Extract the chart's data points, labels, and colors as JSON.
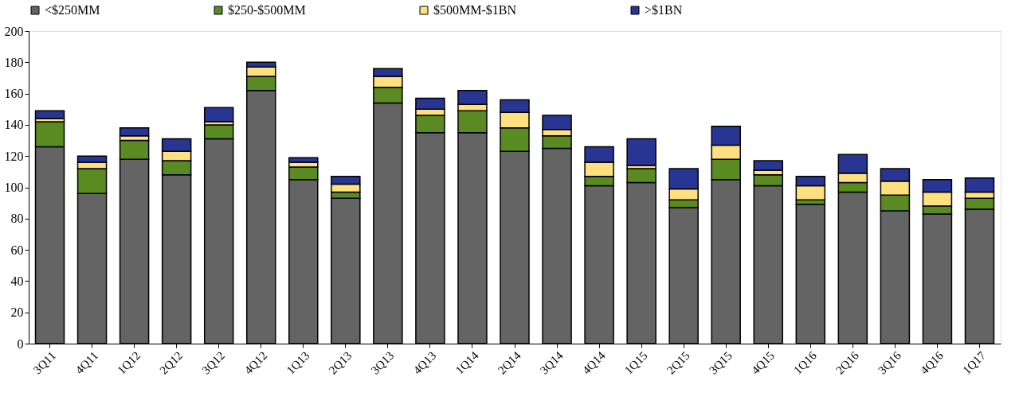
{
  "chart_data": {
    "type": "bar",
    "stacked": true,
    "categories": [
      "3Q11",
      "4Q11",
      "1Q12",
      "2Q12",
      "3Q12",
      "4Q12",
      "1Q13",
      "2Q13",
      "3Q13",
      "4Q13",
      "1Q14",
      "2Q14",
      "3Q14",
      "4Q14",
      "1Q15",
      "2Q15",
      "3Q15",
      "4Q15",
      "1Q16",
      "2Q16",
      "3Q16",
      "4Q16",
      "1Q17"
    ],
    "series": [
      {
        "name": "<$250MM",
        "color": "#646464",
        "values": [
          126,
          96,
          118,
          108,
          131,
          162,
          105,
          93,
          154,
          135,
          135,
          123,
          125,
          101,
          103,
          87,
          105,
          101,
          89,
          97,
          85,
          83,
          86
        ]
      },
      {
        "name": "$250-$500MM",
        "color": "#5a8a22",
        "values": [
          16,
          16,
          12,
          9,
          9,
          9,
          8,
          4,
          10,
          11,
          14,
          15,
          8,
          6,
          9,
          5,
          13,
          7,
          3,
          6,
          10,
          5,
          7
        ]
      },
      {
        "name": "$500MM-$1BN",
        "color": "#ffe080",
        "values": [
          2,
          4,
          3,
          6,
          2,
          6,
          3,
          5,
          7,
          4,
          4,
          10,
          4,
          9,
          2,
          7,
          9,
          3,
          9,
          6,
          9,
          9,
          4
        ]
      },
      {
        "name": ">$1BN",
        "color": "#283593",
        "values": [
          5,
          4,
          5,
          8,
          9,
          3,
          3,
          5,
          5,
          7,
          9,
          8,
          9,
          10,
          17,
          13,
          12,
          6,
          6,
          12,
          8,
          8,
          9
        ]
      }
    ],
    "ylim": [
      0,
      200
    ],
    "yticks": [
      0,
      20,
      40,
      60,
      80,
      100,
      120,
      140,
      160,
      180,
      200
    ],
    "grid": false,
    "legend": "top"
  }
}
